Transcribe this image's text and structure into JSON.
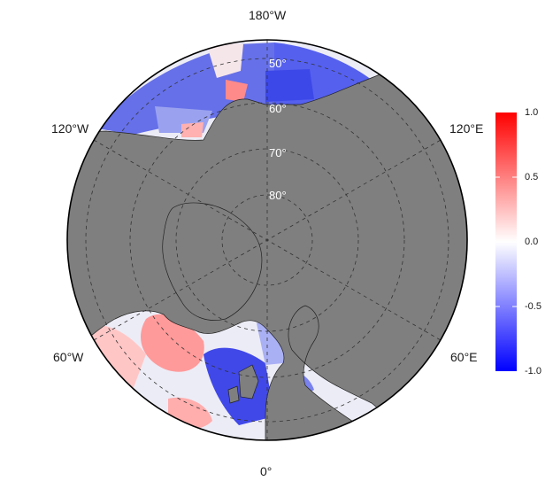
{
  "map": {
    "projection": "north-polar-stereographic",
    "land_color": "#7f7f7f",
    "grid_style": "dashed",
    "lon_labels": {
      "top": "180°W",
      "upper_left": "120°W",
      "upper_right": "120°E",
      "lower_left": "60°W",
      "lower_right": "60°E",
      "bottom": "0°"
    },
    "lat_labels": [
      "50°",
      "60°",
      "70°",
      "80°"
    ]
  },
  "colorbar": {
    "colors": {
      "low": "#0000ff",
      "mid": "#ffffff",
      "high": "#ff0000"
    },
    "ticks": [
      "1.0",
      "0.5",
      "0.0",
      "-0.5",
      "-1.0"
    ]
  }
}
